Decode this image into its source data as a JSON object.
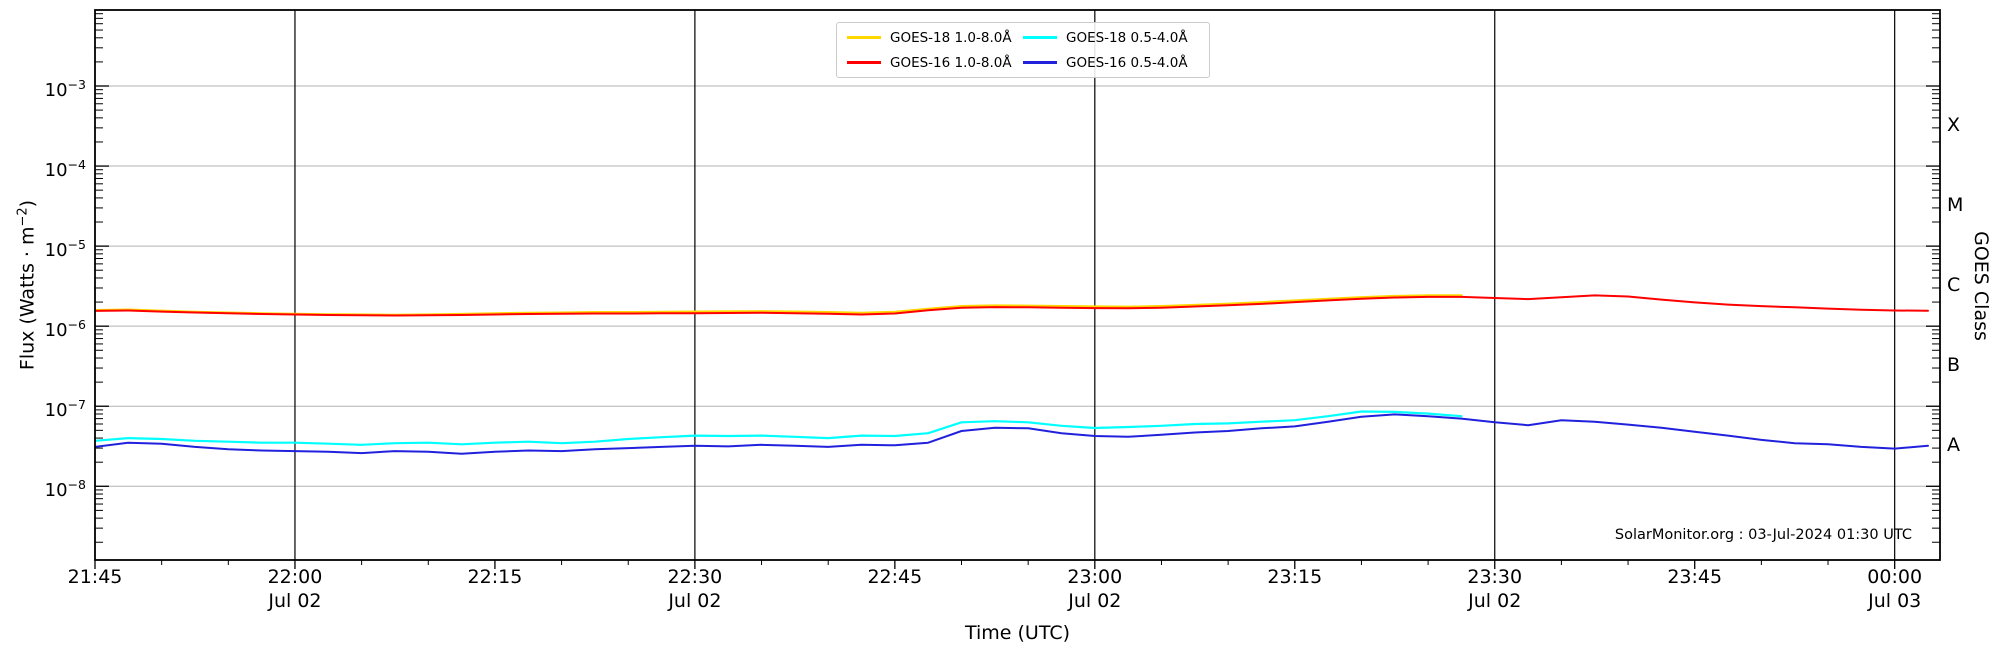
{
  "attribution": "SolarMonitor.org : 03-Jul-2024 01:30 UTC",
  "colors": {
    "goes18_long": "#ffd700",
    "goes16_long": "#ff0000",
    "goes18_short": "#00ffff",
    "goes16_short": "#2121dd",
    "gridline": "#b3b3b3",
    "day_line": "#000000"
  },
  "chart_data": {
    "type": "line",
    "title": "",
    "x_unit": "minutes after 2024-07-02 21:45 UTC",
    "x_axis": {
      "label": "Time (UTC)",
      "range_min": [
        0,
        138.4
      ],
      "minor_tick_step_min": 5,
      "day_line_minutes": [
        15,
        45,
        75,
        105,
        135
      ],
      "ticks": [
        {
          "t": 0,
          "label": "21:45",
          "sub": ""
        },
        {
          "t": 15,
          "label": "22:00",
          "sub": "Jul 02"
        },
        {
          "t": 30,
          "label": "22:15",
          "sub": ""
        },
        {
          "t": 45,
          "label": "22:30",
          "sub": "Jul 02"
        },
        {
          "t": 60,
          "label": "22:45",
          "sub": ""
        },
        {
          "t": 75,
          "label": "23:00",
          "sub": "Jul 02"
        },
        {
          "t": 90,
          "label": "23:15",
          "sub": ""
        },
        {
          "t": 105,
          "label": "23:30",
          "sub": "Jul 02"
        },
        {
          "t": 120,
          "label": "23:45",
          "sub": ""
        },
        {
          "t": 135,
          "label": "00:00",
          "sub": "Jul 03"
        }
      ]
    },
    "y_axis": {
      "scale": "log",
      "range": [
        1.2e-09,
        0.0089
      ],
      "decade_exponents": [
        -3,
        -4,
        -5,
        -6,
        -7,
        -8
      ],
      "label_parts": {
        "pre": "Flux (Watts · m",
        "sup": "−2",
        "post": ")"
      }
    },
    "right_axis": {
      "label": "GOES Class",
      "classes": [
        {
          "label": "X",
          "exp": -3.5
        },
        {
          "label": "M",
          "exp": -4.5
        },
        {
          "label": "C",
          "exp": -5.5
        },
        {
          "label": "B",
          "exp": -6.5
        },
        {
          "label": "A",
          "exp": -7.5
        }
      ]
    },
    "series": [
      {
        "name": "GOES-18 1.0-8.0Å",
        "color": "#ffd700",
        "x": [
          0,
          2.5,
          5,
          7.5,
          10,
          12.5,
          15,
          17.5,
          20,
          22.5,
          25,
          27.5,
          30,
          32.5,
          35,
          37.5,
          40,
          42.5,
          45,
          47.5,
          50,
          52.5,
          55,
          57.5,
          60,
          62.5,
          65,
          67.5,
          70,
          72.5,
          75,
          77.5,
          80,
          82.5,
          85,
          87.5,
          90,
          92.5,
          95,
          97.5,
          100,
          102.5
        ],
        "y": [
          1.58e-06,
          1.6e-06,
          1.55e-06,
          1.5e-06,
          1.47e-06,
          1.44e-06,
          1.42e-06,
          1.4e-06,
          1.39e-06,
          1.38e-06,
          1.39e-06,
          1.41e-06,
          1.44e-06,
          1.46e-06,
          1.47e-06,
          1.49e-06,
          1.49e-06,
          1.5e-06,
          1.51e-06,
          1.52e-06,
          1.53e-06,
          1.51e-06,
          1.49e-06,
          1.46e-06,
          1.5e-06,
          1.64e-06,
          1.77e-06,
          1.8e-06,
          1.79e-06,
          1.77e-06,
          1.75e-06,
          1.74e-06,
          1.77e-06,
          1.83e-06,
          1.9e-06,
          1.98e-06,
          2.08e-06,
          2.18e-06,
          2.29e-06,
          2.37e-06,
          2.41e-06,
          2.41e-06
        ]
      },
      {
        "name": "GOES-16 1.0-8.0Å",
        "color": "#ff0000",
        "x": [
          0,
          2.5,
          5,
          7.5,
          10,
          12.5,
          15,
          17.5,
          20,
          22.5,
          25,
          27.5,
          30,
          32.5,
          35,
          37.5,
          40,
          42.5,
          45,
          47.5,
          50,
          52.5,
          55,
          57.5,
          60,
          62.5,
          65,
          67.5,
          70,
          72.5,
          75,
          77.5,
          80,
          82.5,
          85,
          87.5,
          90,
          92.5,
          95,
          97.5,
          100,
          102.5,
          105,
          107.5,
          110,
          112.5,
          115,
          117.5,
          120,
          122.5,
          125,
          127.5,
          130,
          132.5,
          135,
          137.5
        ],
        "y": [
          1.55e-06,
          1.57e-06,
          1.52e-06,
          1.48e-06,
          1.45e-06,
          1.42e-06,
          1.4e-06,
          1.38e-06,
          1.37e-06,
          1.36e-06,
          1.37e-06,
          1.38e-06,
          1.4e-06,
          1.42e-06,
          1.43e-06,
          1.44e-06,
          1.44e-06,
          1.45e-06,
          1.45e-06,
          1.46e-06,
          1.47e-06,
          1.45e-06,
          1.43e-06,
          1.4e-06,
          1.44e-06,
          1.58e-06,
          1.7e-06,
          1.73e-06,
          1.72e-06,
          1.7e-06,
          1.68e-06,
          1.67e-06,
          1.7e-06,
          1.76e-06,
          1.83e-06,
          1.9e-06,
          2e-06,
          2.1e-06,
          2.2e-06,
          2.28e-06,
          2.32e-06,
          2.32e-06,
          2.25e-06,
          2.18e-06,
          2.3e-06,
          2.42e-06,
          2.35e-06,
          2.15e-06,
          1.98e-06,
          1.86e-06,
          1.78e-06,
          1.72e-06,
          1.66e-06,
          1.6e-06,
          1.57e-06,
          1.56e-06
        ]
      },
      {
        "name": "GOES-18 0.5-4.0Å",
        "color": "#00ffff",
        "x": [
          0,
          2.5,
          5,
          7.5,
          10,
          12.5,
          15,
          17.5,
          20,
          22.5,
          25,
          27.5,
          30,
          32.5,
          35,
          37.5,
          40,
          42.5,
          45,
          47.5,
          50,
          52.5,
          55,
          57.5,
          60,
          62.5,
          65,
          67.5,
          70,
          72.5,
          75,
          77.5,
          80,
          82.5,
          85,
          87.5,
          90,
          92.5,
          95,
          97.5,
          100,
          102.5
        ],
        "y": [
          3.7e-08,
          4e-08,
          3.9e-08,
          3.7e-08,
          3.6e-08,
          3.5e-08,
          3.5e-08,
          3.4e-08,
          3.3e-08,
          3.45e-08,
          3.5e-08,
          3.35e-08,
          3.5e-08,
          3.6e-08,
          3.45e-08,
          3.6e-08,
          3.9e-08,
          4.1e-08,
          4.3e-08,
          4.25e-08,
          4.3e-08,
          4.15e-08,
          4e-08,
          4.3e-08,
          4.25e-08,
          4.6e-08,
          6.3e-08,
          6.5e-08,
          6.3e-08,
          5.7e-08,
          5.35e-08,
          5.5e-08,
          5.7e-08,
          6e-08,
          6.1e-08,
          6.4e-08,
          6.7e-08,
          7.5e-08,
          8.6e-08,
          8.5e-08,
          8.1e-08,
          7.5e-08
        ]
      },
      {
        "name": "GOES-16 0.5-4.0Å",
        "color": "#2121dd",
        "x": [
          0,
          2.5,
          5,
          7.5,
          10,
          12.5,
          15,
          17.5,
          20,
          22.5,
          25,
          27.5,
          30,
          32.5,
          35,
          37.5,
          40,
          42.5,
          45,
          47.5,
          50,
          52.5,
          55,
          57.5,
          60,
          62.5,
          65,
          67.5,
          70,
          72.5,
          75,
          77.5,
          80,
          82.5,
          85,
          87.5,
          90,
          92.5,
          95,
          97.5,
          100,
          102.5,
          105,
          107.5,
          110,
          112.5,
          115,
          117.5,
          120,
          122.5,
          125,
          127.5,
          130,
          132.5,
          135,
          137.5
        ],
        "y": [
          3.1e-08,
          3.5e-08,
          3.4e-08,
          3.1e-08,
          2.9e-08,
          2.8e-08,
          2.75e-08,
          2.7e-08,
          2.6e-08,
          2.75e-08,
          2.7e-08,
          2.55e-08,
          2.7e-08,
          2.8e-08,
          2.75e-08,
          2.9e-08,
          3e-08,
          3.1e-08,
          3.2e-08,
          3.15e-08,
          3.3e-08,
          3.2e-08,
          3.1e-08,
          3.3e-08,
          3.25e-08,
          3.5e-08,
          4.9e-08,
          5.4e-08,
          5.3e-08,
          4.6e-08,
          4.25e-08,
          4.15e-08,
          4.4e-08,
          4.7e-08,
          4.9e-08,
          5.3e-08,
          5.6e-08,
          6.4e-08,
          7.4e-08,
          7.9e-08,
          7.5e-08,
          7e-08,
          6.3e-08,
          5.8e-08,
          6.7e-08,
          6.4e-08,
          5.9e-08,
          5.4e-08,
          4.8e-08,
          4.3e-08,
          3.8e-08,
          3.45e-08,
          3.35e-08,
          3.1e-08,
          2.96e-08,
          3.2e-08
        ]
      }
    ]
  }
}
